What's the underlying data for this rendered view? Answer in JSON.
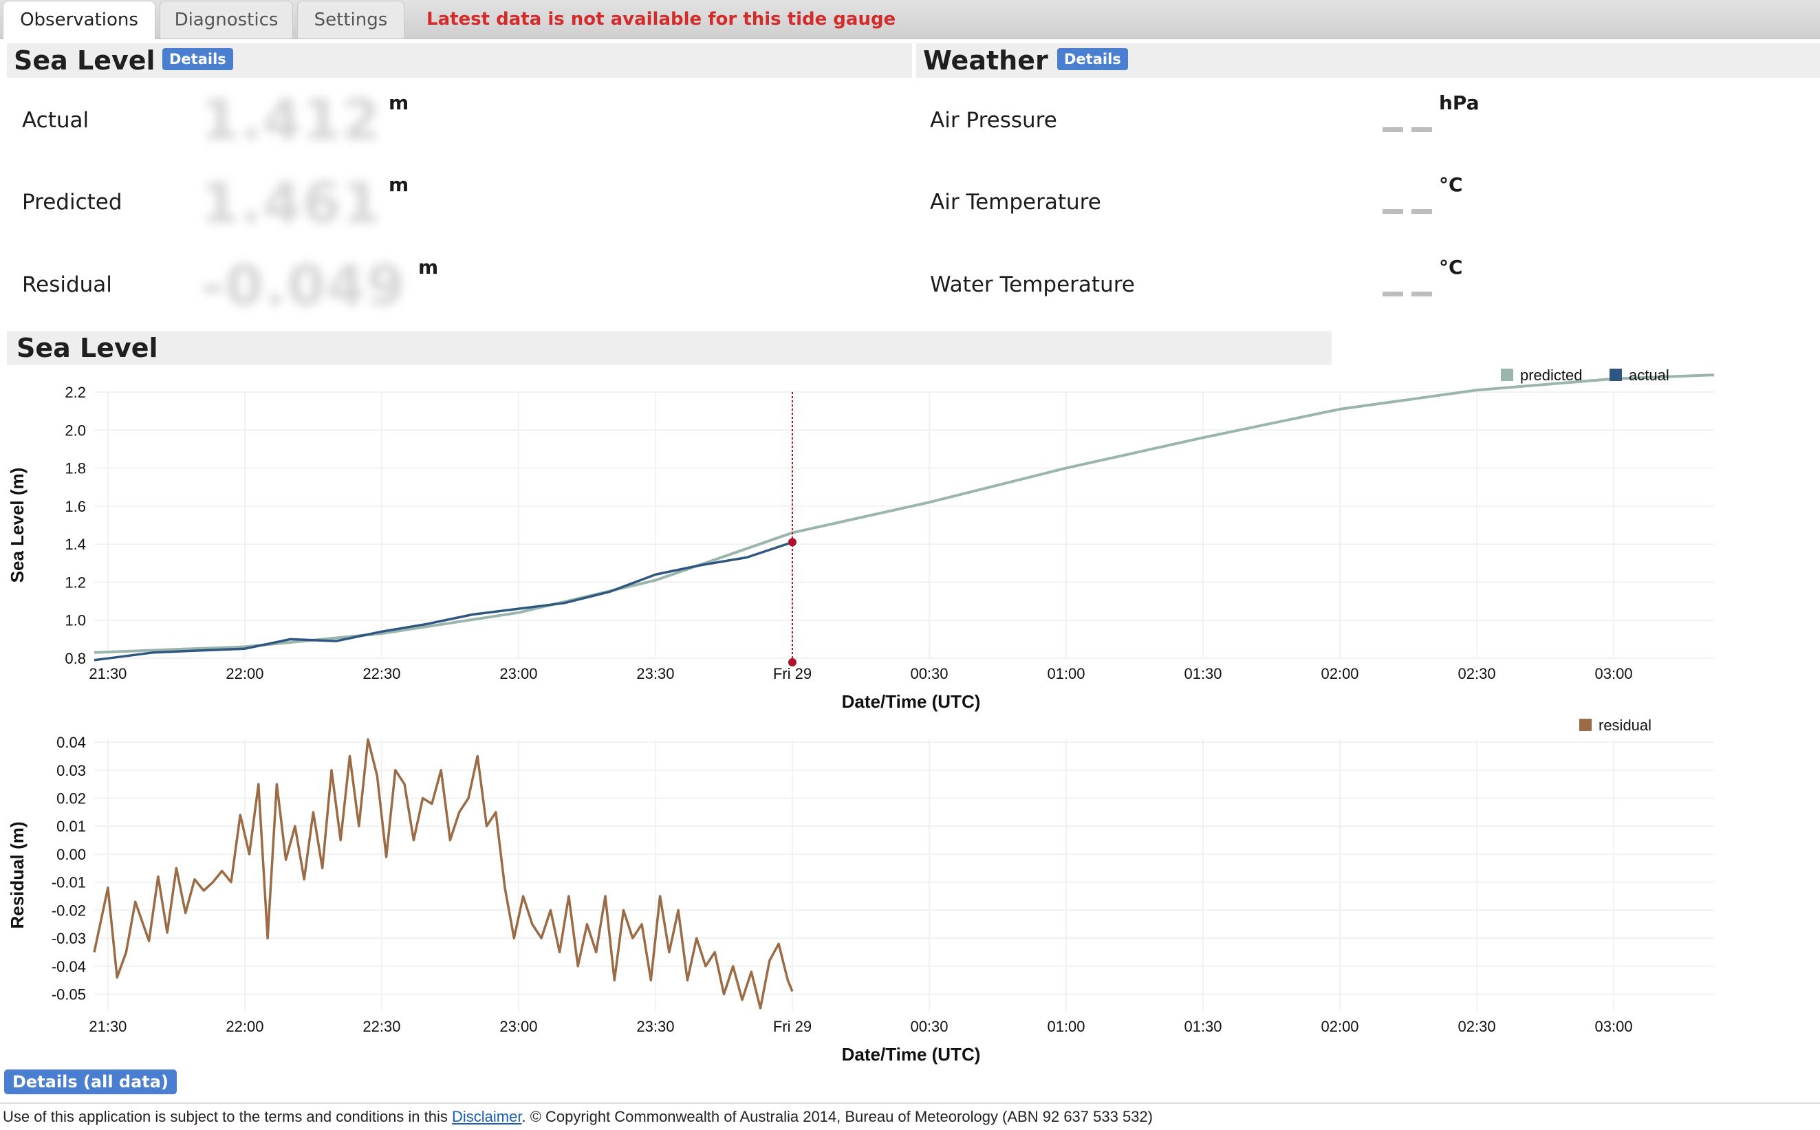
{
  "tabs": [
    {
      "label": "Observations",
      "active": true
    },
    {
      "label": "Diagnostics",
      "active": false
    },
    {
      "label": "Settings",
      "active": false
    }
  ],
  "alert": "Latest data is not available for this tide gauge",
  "sea_level_panel": {
    "title": "Sea Level",
    "details_label": "Details",
    "rows": [
      {
        "label": "Actual",
        "value": "1.412",
        "unit": "m"
      },
      {
        "label": "Predicted",
        "value": "1.461",
        "unit": "m"
      },
      {
        "label": "Residual",
        "value": "-0.049",
        "unit": "m"
      }
    ]
  },
  "weather_panel": {
    "title": "Weather",
    "details_label": "Details",
    "rows": [
      {
        "label": "Air Pressure",
        "unit": "hPa"
      },
      {
        "label": "Air Temperature",
        "unit": "°C"
      },
      {
        "label": "Water Temperature",
        "unit": "°C"
      }
    ]
  },
  "chart_section_title": "Sea Level",
  "chart_data": [
    {
      "type": "line",
      "ylabel": "Sea Level (m)",
      "xlabel": "Date/Time (UTC)",
      "x_ticks": [
        "21:30",
        "22:00",
        "22:30",
        "23:00",
        "23:30",
        "Fri 29",
        "00:30",
        "01:00",
        "01:30",
        "02:00",
        "02:30",
        "03:00"
      ],
      "x_range_minutes": [
        -153,
        202
      ],
      "ylim": [
        0.8,
        2.2
      ],
      "y_ticks": [
        "0.8",
        "1.0",
        "1.2",
        "1.4",
        "1.6",
        "1.8",
        "2.0",
        "2.2"
      ],
      "legend": [
        "predicted",
        "actual"
      ],
      "legend_position": "top-right",
      "cursor_time": "Fri 29",
      "colors": {
        "predicted": "#9ab5ab",
        "actual": "#2f5680",
        "cursor": "#b0102a"
      },
      "series": [
        {
          "name": "predicted",
          "x": [
            -153,
            -120,
            -90,
            -60,
            -30,
            0,
            30,
            60,
            90,
            120,
            150,
            180,
            202
          ],
          "values": [
            0.83,
            0.86,
            0.93,
            1.04,
            1.21,
            1.46,
            1.62,
            1.8,
            1.96,
            2.11,
            2.21,
            2.27,
            2.29
          ]
        },
        {
          "name": "actual",
          "x": [
            -153,
            -140,
            -130,
            -120,
            -110,
            -100,
            -90,
            -80,
            -70,
            -60,
            -50,
            -40,
            -30,
            -20,
            -10,
            0
          ],
          "values": [
            0.79,
            0.83,
            0.84,
            0.85,
            0.9,
            0.89,
            0.94,
            0.98,
            1.03,
            1.06,
            1.09,
            1.15,
            1.24,
            1.29,
            1.33,
            1.41
          ]
        }
      ]
    },
    {
      "type": "line",
      "ylabel": "Residual (m)",
      "xlabel": "Date/Time (UTC)",
      "x_ticks": [
        "21:30",
        "22:00",
        "22:30",
        "23:00",
        "23:30",
        "Fri 29",
        "00:30",
        "01:00",
        "01:30",
        "02:00",
        "02:30",
        "03:00"
      ],
      "x_range_minutes": [
        -153,
        202
      ],
      "ylim": [
        -0.056,
        0.041
      ],
      "y_ticks": [
        "0.04",
        "0.03",
        "0.02",
        "0.01",
        "0.00",
        "-0.01",
        "-0.02",
        "-0.03",
        "-0.04",
        "-0.05"
      ],
      "legend": [
        "residual"
      ],
      "legend_position": "top-right",
      "colors": {
        "residual": "#9a6b45"
      },
      "series": [
        {
          "name": "residual",
          "x": [
            -153,
            -150,
            -148,
            -146,
            -144,
            -141,
            -139,
            -137,
            -135,
            -133,
            -131,
            -129,
            -127,
            -125,
            -123,
            -121,
            -119,
            -117,
            -115,
            -113,
            -111,
            -109,
            -107,
            -105,
            -103,
            -101,
            -99,
            -97,
            -95,
            -93,
            -91,
            -89,
            -87,
            -85,
            -83,
            -81,
            -79,
            -77,
            -75,
            -73,
            -71,
            -69,
            -67,
            -65,
            -63,
            -61,
            -59,
            -57,
            -55,
            -53,
            -51,
            -49,
            -47,
            -45,
            -43,
            -41,
            -39,
            -37,
            -35,
            -33,
            -31,
            -29,
            -27,
            -25,
            -23,
            -21,
            -19,
            -17,
            -15,
            -13,
            -11,
            -9,
            -7,
            -5,
            -3,
            -1,
            0
          ],
          "values": [
            -0.035,
            -0.012,
            -0.044,
            -0.035,
            -0.017,
            -0.031,
            -0.008,
            -0.028,
            -0.005,
            -0.021,
            -0.009,
            -0.013,
            -0.01,
            -0.006,
            -0.01,
            0.014,
            0.0,
            0.025,
            -0.03,
            0.025,
            -0.002,
            0.01,
            -0.009,
            0.015,
            -0.005,
            0.03,
            0.005,
            0.035,
            0.01,
            0.041,
            0.028,
            -0.001,
            0.03,
            0.025,
            0.005,
            0.02,
            0.018,
            0.03,
            0.005,
            0.015,
            0.02,
            0.035,
            0.01,
            0.015,
            -0.012,
            -0.03,
            -0.015,
            -0.025,
            -0.03,
            -0.02,
            -0.035,
            -0.015,
            -0.04,
            -0.025,
            -0.035,
            -0.015,
            -0.045,
            -0.02,
            -0.03,
            -0.025,
            -0.045,
            -0.015,
            -0.035,
            -0.02,
            -0.045,
            -0.03,
            -0.04,
            -0.035,
            -0.05,
            -0.04,
            -0.052,
            -0.042,
            -0.055,
            -0.038,
            -0.032,
            -0.045,
            -0.049
          ]
        }
      ]
    }
  ],
  "details_all_label": "Details (all data)",
  "footer": {
    "prefix": "Use of this application is subject to the terms and conditions in this ",
    "link": "Disclaimer",
    "suffix": ". © Copyright Commonwealth of Australia 2014, Bureau of Meteorology (ABN 92 637 533 532)"
  }
}
